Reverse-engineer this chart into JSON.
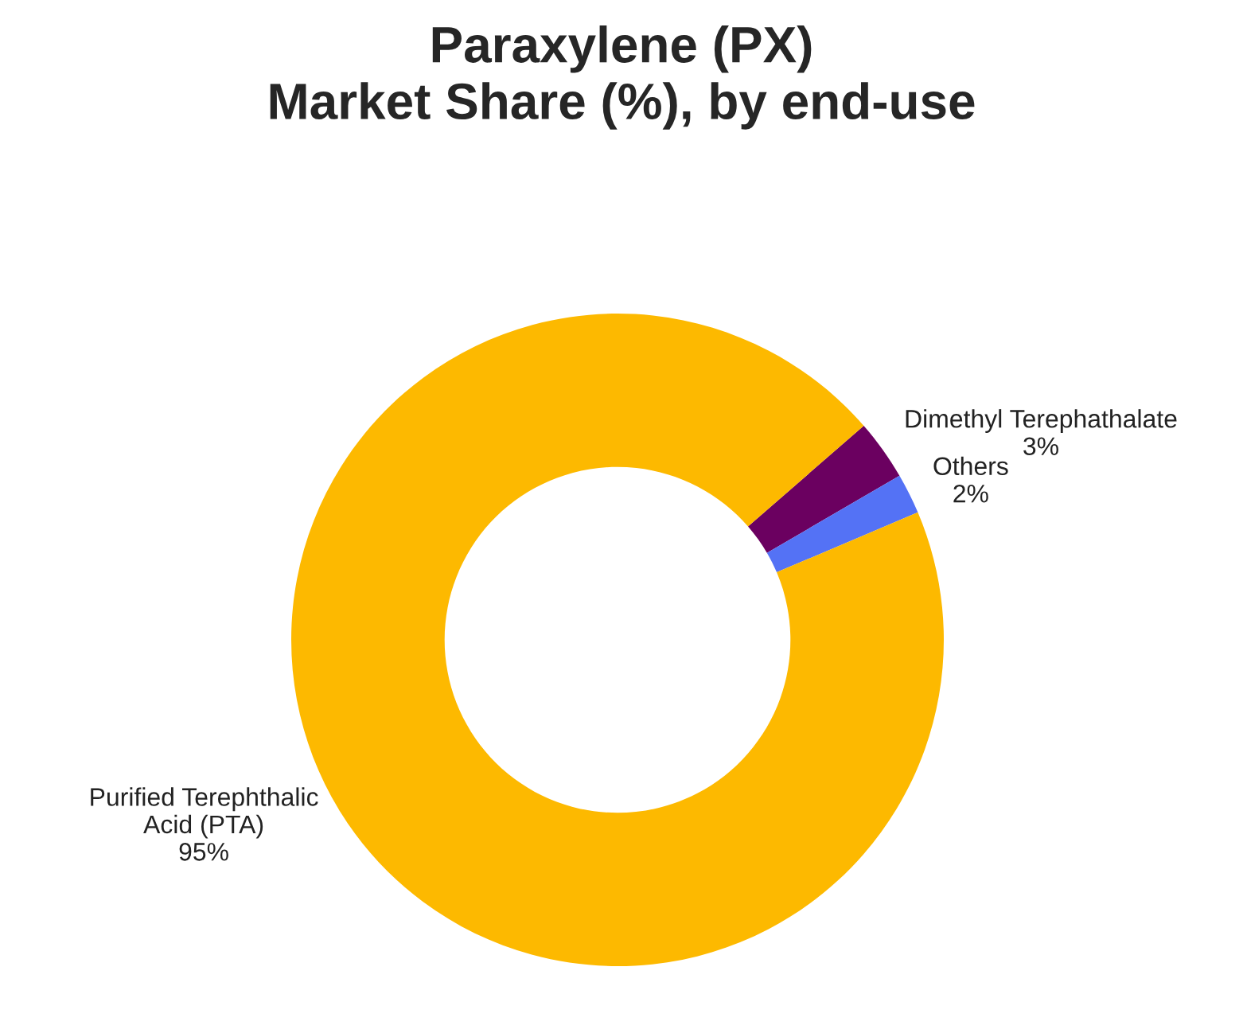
{
  "chart_data": {
    "type": "donut",
    "title": "Paraxylene (PX)\nMarket Share (%), by end-use",
    "categories": [
      "Dimethyl Terephathalate",
      "Others",
      "Purified Terephthalic\nAcid (PTA)"
    ],
    "values": [
      3,
      2,
      95
    ],
    "value_labels": [
      "3%",
      "2%",
      "95%"
    ],
    "colors": [
      "#6b0060",
      "#5472f5",
      "#fdb900"
    ],
    "legend": false
  }
}
